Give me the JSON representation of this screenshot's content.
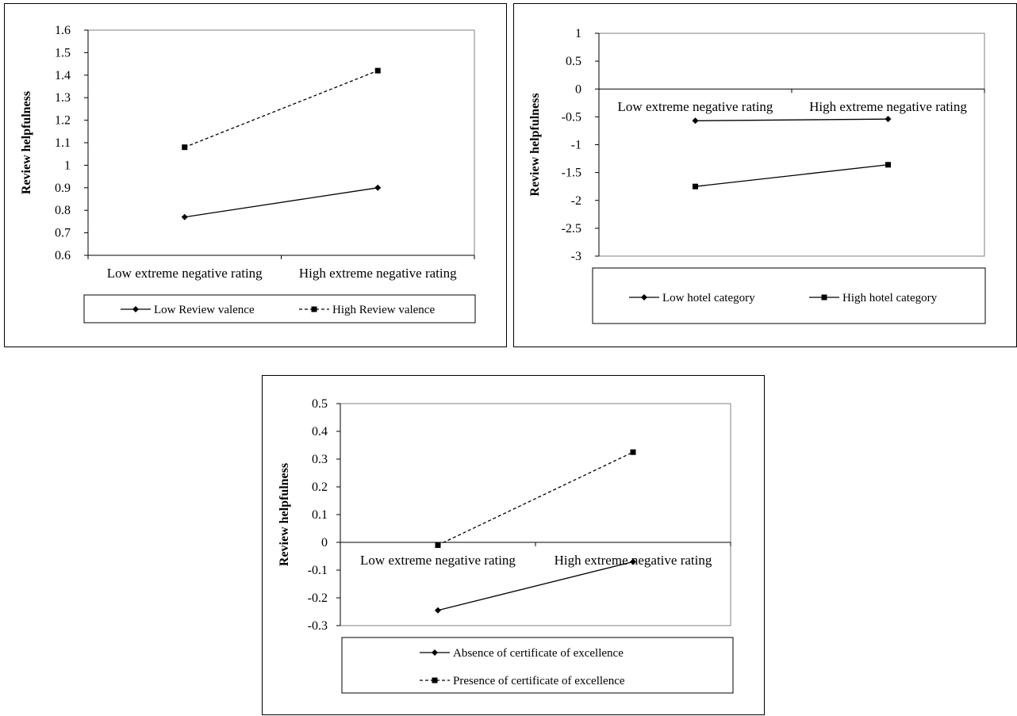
{
  "chart_data": [
    {
      "type": "line",
      "categories": [
        "Low extreme negative rating",
        "High extreme negative rating"
      ],
      "series": [
        {
          "name": "Low Review valence",
          "values": [
            0.77,
            0.9
          ],
          "dashed": false,
          "marker": "diamond"
        },
        {
          "name": "High Review valence",
          "values": [
            1.08,
            1.42
          ],
          "dashed": true,
          "marker": "square"
        }
      ],
      "ylabel": "Review helpfulness",
      "xlabel": "",
      "ylim": [
        0.6,
        1.6
      ],
      "yticks": [
        "0.6",
        "0.7",
        "0.8",
        "0.9",
        "1",
        "1.1",
        "1.2",
        "1.3",
        "1.4",
        "1.5",
        "1.6"
      ],
      "grid": false,
      "legend": "bottom"
    },
    {
      "type": "line",
      "categories": [
        "Low extreme negative rating",
        "High extreme negative rating"
      ],
      "series": [
        {
          "name": "Low hotel category",
          "values": [
            -0.57,
            -0.54
          ],
          "dashed": false,
          "marker": "diamond"
        },
        {
          "name": "High hotel category",
          "values": [
            -1.75,
            -1.36
          ],
          "dashed": false,
          "marker": "square"
        }
      ],
      "ylabel": "Review helpfulness",
      "xlabel": "",
      "ylim": [
        -3,
        1
      ],
      "yticks": [
        "-3",
        "-2.5",
        "-2",
        "-1.5",
        "-1",
        "-0.5",
        "0",
        "0.5",
        "1"
      ],
      "grid": false,
      "legend": "bottom"
    },
    {
      "type": "line",
      "categories": [
        "Low extreme negative rating",
        "High extreme negative rating"
      ],
      "series": [
        {
          "name": "Absence of certificate of excellence",
          "values": [
            -0.245,
            -0.07
          ],
          "dashed": false,
          "marker": "diamond"
        },
        {
          "name": "Presence of certificate of excellence",
          "values": [
            -0.01,
            0.325
          ],
          "dashed": true,
          "marker": "square"
        }
      ],
      "ylabel": "Review helpfulness",
      "xlabel": "",
      "ylim": [
        -0.3,
        0.5
      ],
      "yticks": [
        "-0.3",
        "-0.2",
        "-0.1",
        "0",
        "0.1",
        "0.2",
        "0.3",
        "0.4",
        "0.5"
      ],
      "grid": false,
      "legend": "bottom"
    }
  ]
}
